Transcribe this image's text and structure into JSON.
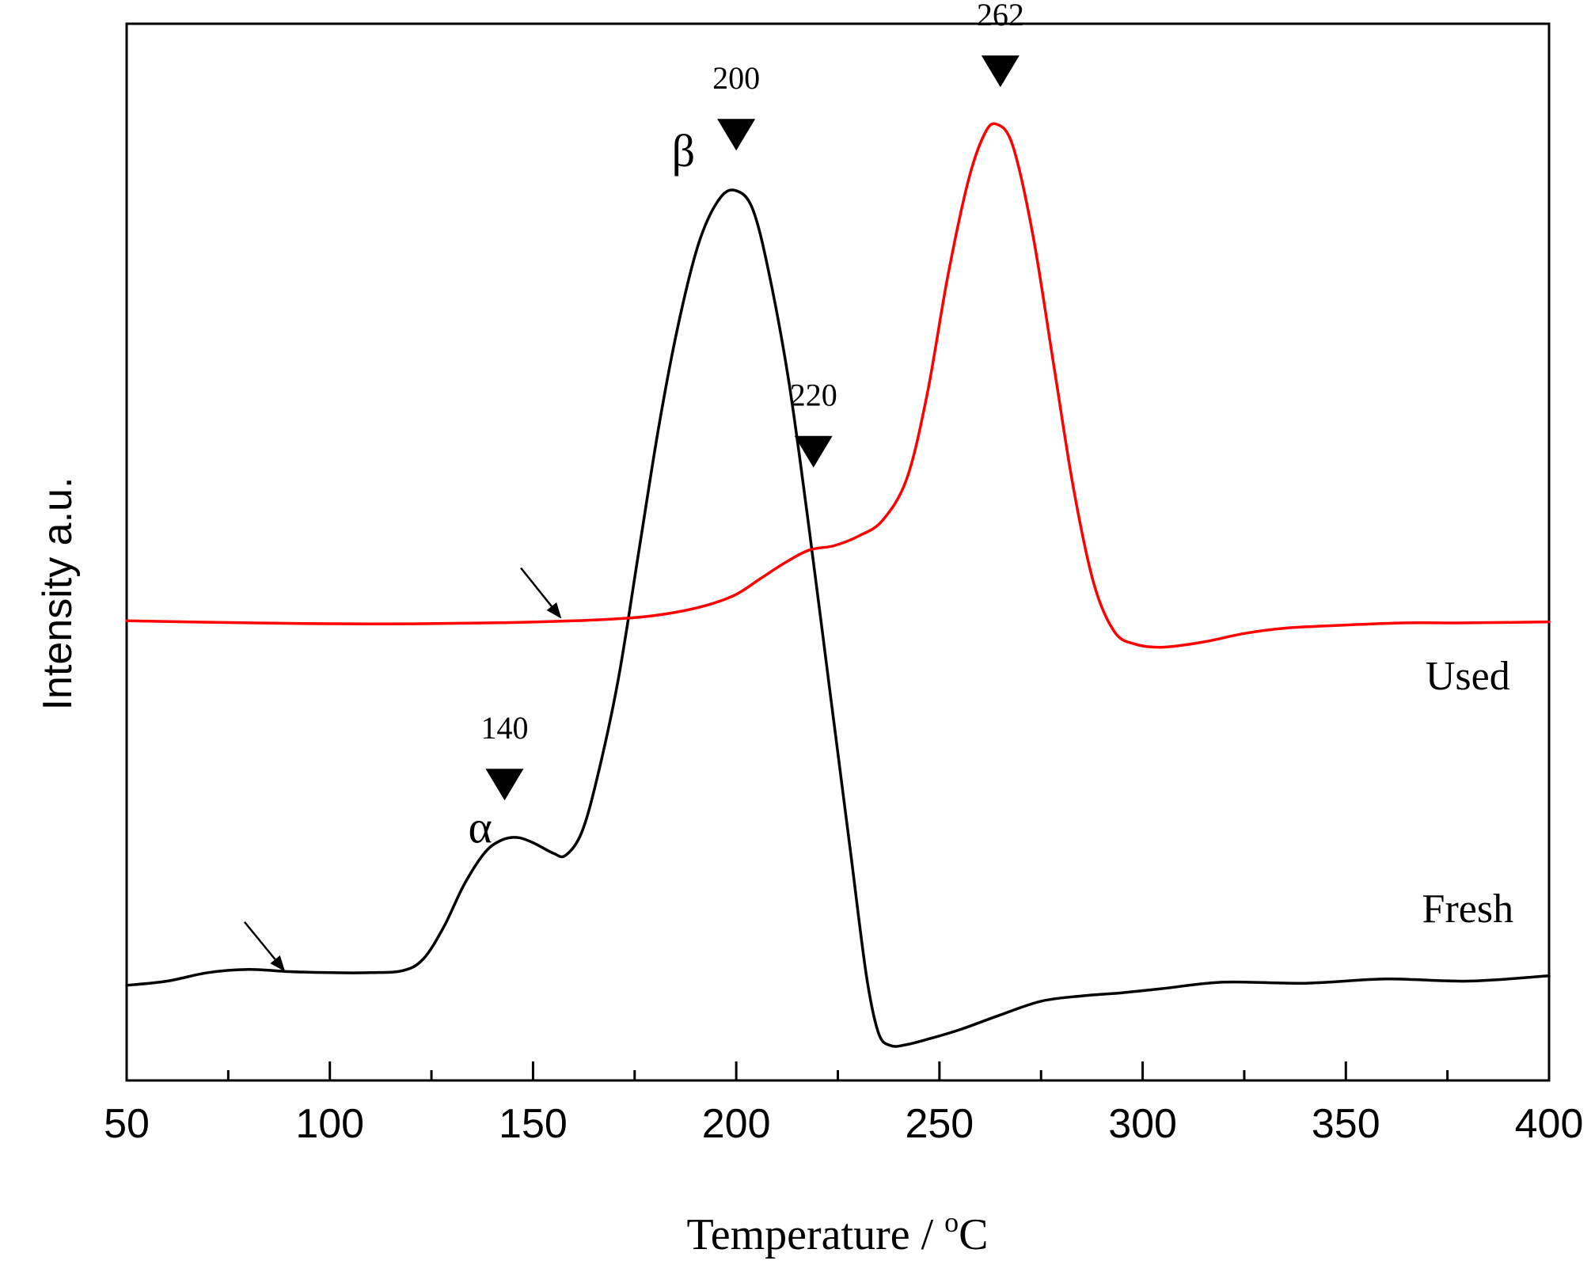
{
  "chart_data": {
    "type": "line",
    "title": "",
    "xlabel": "Temperature / °C",
    "xlabel_parts": {
      "prefix": "Temperature / ",
      "superscript": "o",
      "suffix": "C"
    },
    "ylabel": "Intensity a.u.",
    "xlim": [
      50,
      400
    ],
    "ylim": [
      0,
      100
    ],
    "x_ticks": [
      50,
      100,
      150,
      200,
      250,
      300,
      350,
      400
    ],
    "x_tick_labels": [
      "50",
      "100",
      "150",
      "200",
      "250",
      "300",
      "350",
      "400"
    ],
    "grid": false,
    "series": [
      {
        "name": "Fresh",
        "color": "#000000",
        "points": [
          [
            50,
            9.0
          ],
          [
            60,
            9.4
          ],
          [
            70,
            10.2
          ],
          [
            80,
            10.5
          ],
          [
            90,
            10.3
          ],
          [
            100,
            10.2
          ],
          [
            110,
            10.2
          ],
          [
            118,
            10.4
          ],
          [
            123,
            11.5
          ],
          [
            128,
            14.5
          ],
          [
            133,
            18.5
          ],
          [
            138,
            21.5
          ],
          [
            142,
            22.7
          ],
          [
            146,
            23.0
          ],
          [
            150,
            22.5
          ],
          [
            155,
            21.5
          ],
          [
            158,
            21.3
          ],
          [
            162,
            23.5
          ],
          [
            166,
            29.0
          ],
          [
            171,
            38.0
          ],
          [
            176,
            50.0
          ],
          [
            181,
            62.0
          ],
          [
            186,
            72.0
          ],
          [
            191,
            79.5
          ],
          [
            196,
            83.5
          ],
          [
            200,
            84.2
          ],
          [
            204,
            82.5
          ],
          [
            208,
            76.5
          ],
          [
            213,
            66.0
          ],
          [
            218,
            52.0
          ],
          [
            223,
            37.0
          ],
          [
            228,
            22.0
          ],
          [
            232,
            10.0
          ],
          [
            235,
            4.5
          ],
          [
            238,
            3.3
          ],
          [
            242,
            3.4
          ],
          [
            248,
            4.0
          ],
          [
            255,
            4.8
          ],
          [
            265,
            6.2
          ],
          [
            275,
            7.5
          ],
          [
            285,
            8.0
          ],
          [
            295,
            8.3
          ],
          [
            305,
            8.7
          ],
          [
            320,
            9.3
          ],
          [
            340,
            9.2
          ],
          [
            360,
            9.6
          ],
          [
            380,
            9.4
          ],
          [
            400,
            9.9
          ]
        ]
      },
      {
        "name": "Used",
        "color": "#ff0000",
        "points": [
          [
            50,
            43.5
          ],
          [
            80,
            43.3
          ],
          [
            110,
            43.2
          ],
          [
            140,
            43.3
          ],
          [
            160,
            43.5
          ],
          [
            175,
            43.8
          ],
          [
            185,
            44.3
          ],
          [
            193,
            45.0
          ],
          [
            200,
            46.0
          ],
          [
            206,
            47.5
          ],
          [
            212,
            49.0
          ],
          [
            218,
            50.2
          ],
          [
            224,
            50.6
          ],
          [
            230,
            51.5
          ],
          [
            236,
            53.0
          ],
          [
            242,
            57.0
          ],
          [
            247,
            65.0
          ],
          [
            252,
            76.0
          ],
          [
            257,
            85.0
          ],
          [
            261,
            89.5
          ],
          [
            264,
            90.5
          ],
          [
            268,
            88.5
          ],
          [
            273,
            80.0
          ],
          [
            278,
            68.0
          ],
          [
            283,
            56.0
          ],
          [
            288,
            47.0
          ],
          [
            293,
            42.5
          ],
          [
            298,
            41.3
          ],
          [
            305,
            41.0
          ],
          [
            315,
            41.5
          ],
          [
            325,
            42.3
          ],
          [
            335,
            42.8
          ],
          [
            350,
            43.1
          ],
          [
            365,
            43.3
          ],
          [
            380,
            43.3
          ],
          [
            400,
            43.4
          ]
        ]
      }
    ],
    "annotations": {
      "series_labels": [
        {
          "text": "Used",
          "x": 380,
          "y": 37
        },
        {
          "text": "Fresh",
          "x": 380,
          "y": 15
        }
      ],
      "peak_markers": [
        {
          "label": "140",
          "x": 143,
          "y": 26.5
        },
        {
          "label": "200",
          "x": 200,
          "y": 88
        },
        {
          "label": "220",
          "x": 219,
          "y": 58
        },
        {
          "label": "262",
          "x": 265,
          "y": 94
        }
      ],
      "greek_labels": [
        {
          "text": "α",
          "x": 137,
          "y": 22.5
        },
        {
          "text": "β",
          "x": 187,
          "y": 86.5
        }
      ],
      "arrows": [
        {
          "from": [
            79,
            15
          ],
          "to": [
            89,
            10.3
          ]
        },
        {
          "from": [
            147,
            48.5
          ],
          "to": [
            157,
            43.7
          ]
        }
      ]
    }
  }
}
